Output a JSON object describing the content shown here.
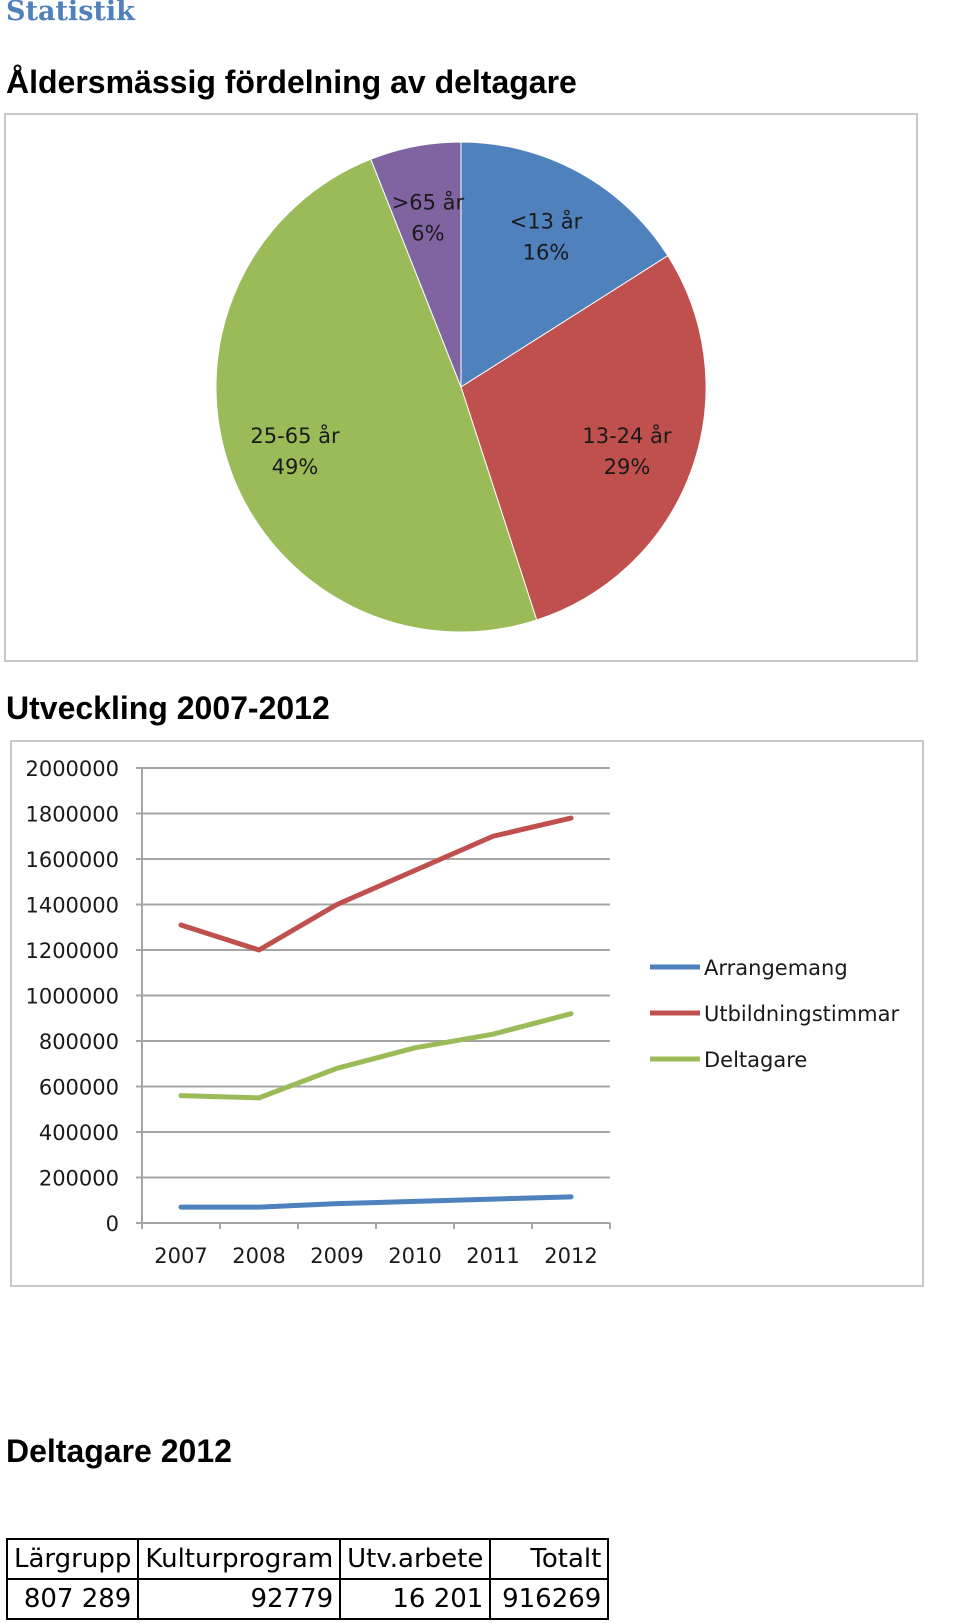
{
  "heading": "Statistik",
  "pie_title": "Åldersmässig fördelning av deltagare",
  "line_title": "Utveckling 2007-2012",
  "table_title": "Deltagare 2012",
  "table": {
    "headers": [
      "Lärgrupp",
      "Kulturprogram",
      "Utv.arbete",
      "Totalt"
    ],
    "rows": [
      [
        "807 289",
        "92779",
        "16 201",
        "916269"
      ]
    ]
  },
  "chart_data": [
    {
      "type": "pie",
      "title": "Åldersmässig fördelning av deltagare",
      "slices": [
        {
          "label": "<13 år",
          "pct_label": "16%",
          "value": 16,
          "color": "#4f81bd"
        },
        {
          "label": "13-24 år",
          "pct_label": "29%",
          "value": 29,
          "color": "#c0504d"
        },
        {
          "label": "25-65 år",
          "pct_label": "49%",
          "value": 49,
          "color": "#9bbb59"
        },
        {
          "label": ">65 år",
          "pct_label": "6%",
          "value": 6,
          "color": "#8064a2"
        }
      ]
    },
    {
      "type": "line",
      "title": "Utveckling 2007-2012",
      "categories": [
        "2007",
        "2008",
        "2009",
        "2010",
        "2011",
        "2012"
      ],
      "ylim": [
        0,
        2000000
      ],
      "yticks": [
        "0",
        "200000",
        "400000",
        "600000",
        "800000",
        "1000000",
        "1200000",
        "1400000",
        "1600000",
        "1800000",
        "2000000"
      ],
      "grid": true,
      "legend": "right",
      "series": [
        {
          "name": "Arrangemang",
          "color": "#4f81bd",
          "values": [
            70000,
            70000,
            85000,
            95000,
            105000,
            115000
          ]
        },
        {
          "name": "Utbildningstimmar",
          "color": "#c0504d",
          "values": [
            1310000,
            1200000,
            1400000,
            1550000,
            1700000,
            1780000
          ]
        },
        {
          "name": "Deltagare",
          "color": "#9bbb59",
          "values": [
            560000,
            550000,
            680000,
            770000,
            830000,
            920000
          ]
        }
      ]
    }
  ]
}
